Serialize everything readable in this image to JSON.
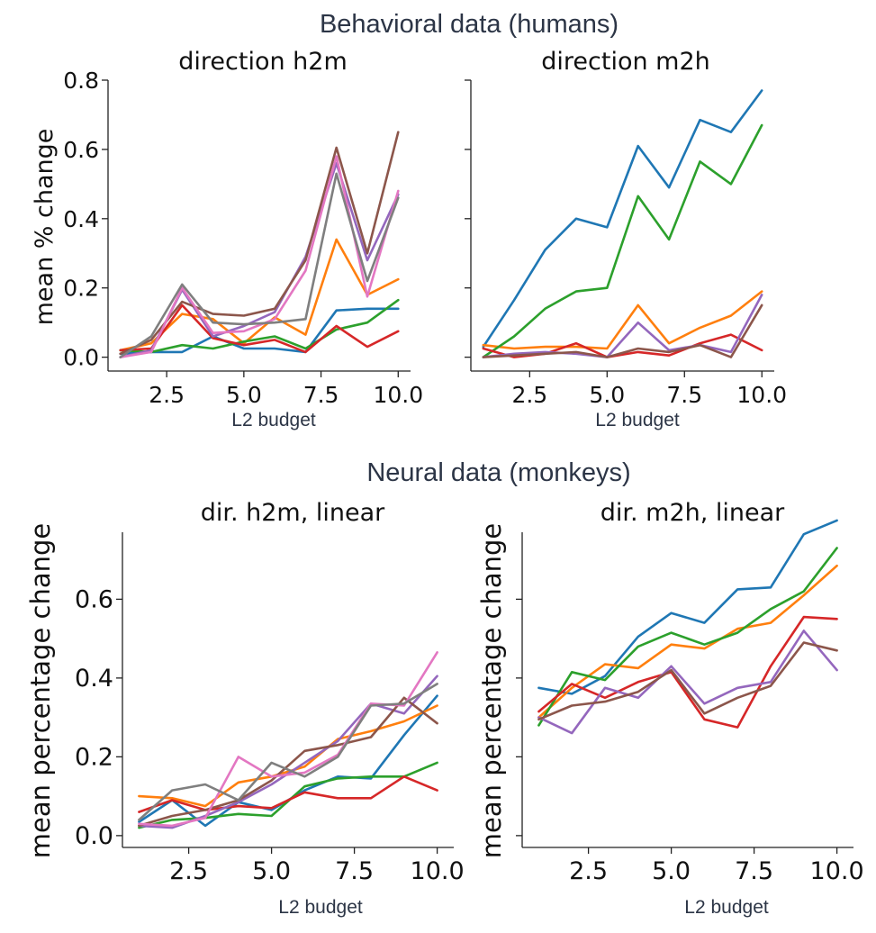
{
  "section_titles": {
    "behavioral": "Behavioral data (humans)",
    "neural": "Neural data (monkeys)"
  },
  "palette": [
    "#1f77b4",
    "#ff7f0e",
    "#2ca02c",
    "#d62728",
    "#9467bd",
    "#8c564b",
    "#e377c2",
    "#7f7f7f"
  ],
  "chart_data": [
    {
      "type": "line",
      "title": "direction h2m",
      "xlabel": "L2 budget",
      "ylabel": "mean % change",
      "xlim": [
        0.6,
        10.4
      ],
      "ylim": [
        -0.04,
        0.8
      ],
      "xticks": [
        2.5,
        5.0,
        7.5,
        10.0
      ],
      "xtick_labels": [
        "2.5",
        "5.0",
        "7.5",
        "10.0"
      ],
      "yticks": [
        0.0,
        0.2,
        0.4,
        0.6,
        0.8
      ],
      "ytick_labels": [
        "0.0",
        "0.2",
        "0.4",
        "0.6",
        "0.8"
      ],
      "x": [
        1,
        2,
        3,
        4,
        5,
        6,
        7,
        8,
        9,
        10
      ],
      "series": [
        {
          "color": "#1f77b4",
          "values": [
            0.01,
            0.015,
            0.015,
            0.06,
            0.025,
            0.025,
            0.015,
            0.135,
            0.14,
            0.14
          ]
        },
        {
          "color": "#ff7f0e",
          "values": [
            0.02,
            0.04,
            0.125,
            0.11,
            0.04,
            0.115,
            0.065,
            0.34,
            0.18,
            0.225
          ]
        },
        {
          "color": "#2ca02c",
          "values": [
            0.02,
            0.015,
            0.035,
            0.025,
            0.045,
            0.06,
            0.025,
            0.08,
            0.1,
            0.165
          ]
        },
        {
          "color": "#d62728",
          "values": [
            0.02,
            0.025,
            0.15,
            0.055,
            0.035,
            0.05,
            0.015,
            0.09,
            0.03,
            0.075
          ]
        },
        {
          "color": "#9467bd",
          "values": [
            0.0,
            0.02,
            0.195,
            0.06,
            0.09,
            0.13,
            0.29,
            0.56,
            0.28,
            0.47
          ]
        },
        {
          "color": "#8c564b",
          "values": [
            0.01,
            0.05,
            0.16,
            0.125,
            0.12,
            0.14,
            0.28,
            0.605,
            0.3,
            0.65
          ]
        },
        {
          "color": "#e377c2",
          "values": [
            0.0,
            0.015,
            0.2,
            0.07,
            0.075,
            0.11,
            0.25,
            0.58,
            0.175,
            0.48
          ]
        },
        {
          "color": "#7f7f7f",
          "values": [
            0.0,
            0.06,
            0.21,
            0.1,
            0.095,
            0.1,
            0.11,
            0.53,
            0.22,
            0.46
          ]
        }
      ]
    },
    {
      "type": "line",
      "title": "direction m2h",
      "xlabel": "L2 budget",
      "ylabel": "",
      "xlim": [
        0.6,
        10.4
      ],
      "ylim": [
        -0.04,
        0.8
      ],
      "xticks": [
        2.5,
        5.0,
        7.5,
        10.0
      ],
      "xtick_labels": [
        "2.5",
        "5.0",
        "7.5",
        "10.0"
      ],
      "yticks": [
        0.0,
        0.2,
        0.4,
        0.6,
        0.8
      ],
      "ytick_labels": [
        "",
        "",
        "",
        "",
        ""
      ],
      "x": [
        1,
        2,
        3,
        4,
        5,
        6,
        7,
        8,
        9,
        10
      ],
      "series": [
        {
          "color": "#1f77b4",
          "values": [
            0.03,
            0.165,
            0.31,
            0.4,
            0.375,
            0.61,
            0.49,
            0.685,
            0.65,
            0.77
          ]
        },
        {
          "color": "#ff7f0e",
          "values": [
            0.035,
            0.025,
            0.03,
            0.03,
            0.025,
            0.15,
            0.04,
            0.085,
            0.12,
            0.19
          ]
        },
        {
          "color": "#2ca02c",
          "values": [
            0.0,
            0.06,
            0.14,
            0.19,
            0.2,
            0.465,
            0.34,
            0.565,
            0.5,
            0.67
          ]
        },
        {
          "color": "#d62728",
          "values": [
            0.025,
            0.0,
            0.01,
            0.04,
            0.0,
            0.015,
            0.005,
            0.04,
            0.065,
            0.02
          ]
        },
        {
          "color": "#9467bd",
          "values": [
            0.0,
            0.01,
            0.015,
            0.01,
            0.0,
            0.1,
            0.02,
            0.035,
            0.015,
            0.18
          ]
        },
        {
          "color": "#8c564b",
          "values": [
            0.0,
            0.005,
            0.01,
            0.015,
            0.0,
            0.025,
            0.015,
            0.035,
            0.0,
            0.15
          ]
        }
      ]
    },
    {
      "type": "line",
      "title": "dir. h2m, linear",
      "xlabel": "L2 budget",
      "ylabel": "mean percentage change",
      "xlim": [
        0.5,
        10.5
      ],
      "ylim": [
        -0.03,
        0.77
      ],
      "xticks": [
        2.5,
        5.0,
        7.5,
        10.0
      ],
      "xtick_labels": [
        "2.5",
        "5.0",
        "7.5",
        "10.0"
      ],
      "yticks": [
        0.0,
        0.2,
        0.4,
        0.6
      ],
      "ytick_labels": [
        "0.0",
        "0.2",
        "0.4",
        "0.6"
      ],
      "x": [
        1,
        2,
        3,
        4,
        5,
        6,
        7,
        8,
        9,
        10
      ],
      "series": [
        {
          "color": "#1f77b4",
          "values": [
            0.035,
            0.09,
            0.025,
            0.085,
            0.065,
            0.115,
            0.15,
            0.145,
            0.255,
            0.355
          ]
        },
        {
          "color": "#ff7f0e",
          "values": [
            0.1,
            0.095,
            0.075,
            0.135,
            0.15,
            0.175,
            0.245,
            0.265,
            0.29,
            0.33
          ]
        },
        {
          "color": "#2ca02c",
          "values": [
            0.02,
            0.04,
            0.045,
            0.055,
            0.05,
            0.125,
            0.145,
            0.15,
            0.15,
            0.185
          ]
        },
        {
          "color": "#d62728",
          "values": [
            0.06,
            0.09,
            0.065,
            0.075,
            0.07,
            0.11,
            0.095,
            0.095,
            0.15,
            0.115
          ]
        },
        {
          "color": "#9467bd",
          "values": [
            0.025,
            0.02,
            0.05,
            0.085,
            0.13,
            0.185,
            0.24,
            0.335,
            0.31,
            0.405
          ]
        },
        {
          "color": "#8c564b",
          "values": [
            0.025,
            0.05,
            0.065,
            0.09,
            0.14,
            0.215,
            0.23,
            0.25,
            0.35,
            0.285
          ]
        },
        {
          "color": "#e377c2",
          "values": [
            0.03,
            0.025,
            0.045,
            0.2,
            0.15,
            0.16,
            0.205,
            0.335,
            0.33,
            0.465
          ]
        },
        {
          "color": "#7f7f7f",
          "values": [
            0.04,
            0.115,
            0.13,
            0.09,
            0.185,
            0.15,
            0.2,
            0.33,
            0.335,
            0.385
          ]
        }
      ]
    },
    {
      "type": "line",
      "title": "dir. m2h, linear",
      "xlabel": "L2 budget",
      "ylabel": "mean percentage change",
      "xlim": [
        0.5,
        10.5
      ],
      "ylim": [
        -0.03,
        0.77
      ],
      "xticks": [
        2.5,
        5.0,
        7.5,
        10.0
      ],
      "xtick_labels": [
        "2.5",
        "5.0",
        "7.5",
        "10.0"
      ],
      "yticks": [
        0.0,
        0.2,
        0.4,
        0.6
      ],
      "ytick_labels": [
        "",
        "",
        "",
        ""
      ],
      "x": [
        1,
        2,
        3,
        4,
        5,
        6,
        7,
        8,
        9,
        10
      ],
      "series": [
        {
          "color": "#1f77b4",
          "values": [
            0.375,
            0.36,
            0.405,
            0.505,
            0.565,
            0.54,
            0.625,
            0.63,
            0.765,
            0.8
          ]
        },
        {
          "color": "#ff7f0e",
          "values": [
            0.3,
            0.375,
            0.435,
            0.425,
            0.485,
            0.475,
            0.525,
            0.54,
            0.61,
            0.685
          ]
        },
        {
          "color": "#2ca02c",
          "values": [
            0.28,
            0.415,
            0.395,
            0.48,
            0.515,
            0.485,
            0.515,
            0.575,
            0.62,
            0.73
          ]
        },
        {
          "color": "#d62728",
          "values": [
            0.315,
            0.385,
            0.35,
            0.39,
            0.415,
            0.295,
            0.275,
            0.43,
            0.555,
            0.55
          ]
        },
        {
          "color": "#9467bd",
          "values": [
            0.3,
            0.26,
            0.375,
            0.35,
            0.43,
            0.335,
            0.375,
            0.39,
            0.52,
            0.42
          ]
        },
        {
          "color": "#8c564b",
          "values": [
            0.295,
            0.33,
            0.34,
            0.365,
            0.42,
            0.31,
            0.35,
            0.38,
            0.49,
            0.47
          ]
        }
      ]
    }
  ]
}
